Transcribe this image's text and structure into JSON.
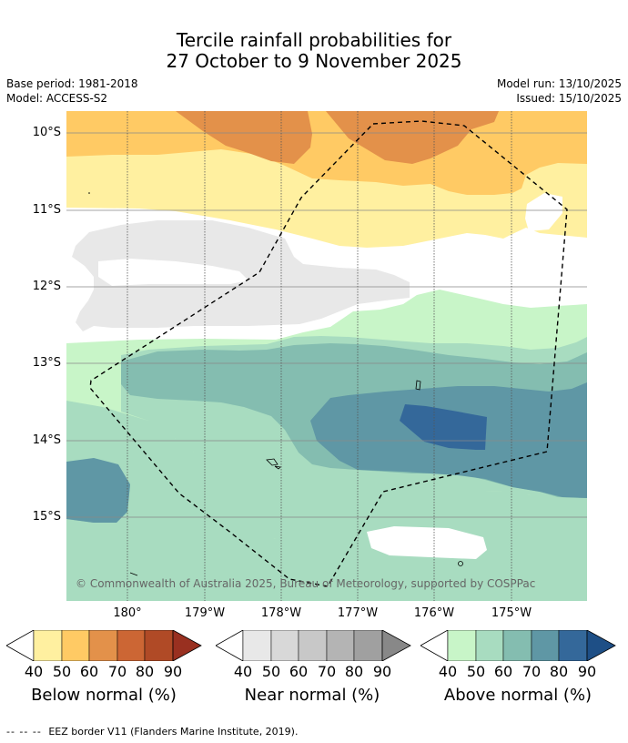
{
  "title_line1": "Tercile rainfall probabilities for",
  "title_line2": "27 October to 9 November 2025",
  "meta": {
    "base_period": "Base period: 1981-2018",
    "model": "Model: ACCESS-S2",
    "model_run": "Model run: 13/10/2025",
    "issued": "Issued: 15/10/2025"
  },
  "axes": {
    "lat_labels": [
      "10°S",
      "11°S",
      "12°S",
      "13°S",
      "14°S",
      "15°S"
    ],
    "lon_labels": [
      "180°",
      "179°W",
      "178°W",
      "177°W",
      "176°W",
      "175°W"
    ]
  },
  "copyright": "© Commonwealth of Australia 2025, Bureau of Meteorology, supported by COSPPac",
  "colorbars": [
    {
      "label": "Below normal (%)",
      "ticks": [
        "40",
        "50",
        "60",
        "70",
        "80",
        "90"
      ],
      "colors": [
        "#fff0a0",
        "#ffca64",
        "#e3914a",
        "#cc6634",
        "#b04a26",
        "#993020"
      ]
    },
    {
      "label": "Near normal (%)",
      "ticks": [
        "40",
        "50",
        "60",
        "70",
        "80",
        "90"
      ],
      "colors": [
        "#e8e8e8",
        "#d8d8d8",
        "#c8c8c8",
        "#b4b4b4",
        "#a0a0a0",
        "#888888"
      ]
    },
    {
      "label": "Above normal (%)",
      "ticks": [
        "40",
        "50",
        "60",
        "70",
        "80",
        "90"
      ],
      "colors": [
        "#c8f5c8",
        "#a8dcc0",
        "#84bdb0",
        "#5f97a5",
        "#34689a",
        "#1e4f86"
      ]
    }
  ],
  "footnote": {
    "dash": "-- -- --",
    "text": "EEZ border V11 (Flanders Marine Institute, 2019)."
  }
}
